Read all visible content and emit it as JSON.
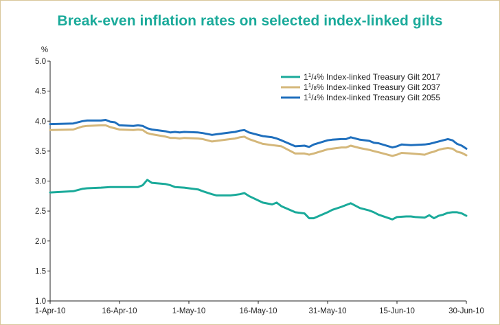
{
  "title": "Break-even inflation rates on selected index-linked gilts",
  "chart_data": {
    "type": "line",
    "title": "Break-even inflation rates on selected index-linked gilts",
    "ylabel": "%",
    "xlabel": "",
    "ylim": [
      1.0,
      5.0
    ],
    "yticks": [
      "5.0",
      "4.5",
      "4.0",
      "3.5",
      "3.0",
      "2.5",
      "2.0",
      "1.5",
      "1.0"
    ],
    "xlim": [
      "2010-04-01",
      "2010-06-30"
    ],
    "xticks": [
      "1-Apr-10",
      "16-Apr-10",
      "1-May-10",
      "16-May-10",
      "31-May-10",
      "15-Jun-10",
      "30-Jun-10"
    ],
    "grid": false,
    "legend_position": "top-right",
    "series": [
      {
        "name": "1¼% Index-linked Treasury Gilt 2017",
        "legend": {
          "pre": "1",
          "sup": "1",
          "mid": "/",
          "sub": "4",
          "post": "% Index-linked Treasury Gilt 2017"
        },
        "color": "#1aaa9a",
        "points": [
          [
            "2010-04-01",
            2.81
          ],
          [
            "2010-04-06",
            2.83
          ],
          [
            "2010-04-08",
            2.87
          ],
          [
            "2010-04-09",
            2.88
          ],
          [
            "2010-04-12",
            2.89
          ],
          [
            "2010-04-14",
            2.9
          ],
          [
            "2010-04-16",
            2.9
          ],
          [
            "2010-04-19",
            2.9
          ],
          [
            "2010-04-20",
            2.9
          ],
          [
            "2010-04-21",
            2.93
          ],
          [
            "2010-04-22",
            3.02
          ],
          [
            "2010-04-23",
            2.97
          ],
          [
            "2010-04-26",
            2.95
          ],
          [
            "2010-04-27",
            2.93
          ],
          [
            "2010-04-28",
            2.9
          ],
          [
            "2010-04-30",
            2.89
          ],
          [
            "2010-05-03",
            2.86
          ],
          [
            "2010-05-04",
            2.83
          ],
          [
            "2010-05-06",
            2.78
          ],
          [
            "2010-05-07",
            2.76
          ],
          [
            "2010-05-10",
            2.76
          ],
          [
            "2010-05-11",
            2.77
          ],
          [
            "2010-05-12",
            2.78
          ],
          [
            "2010-05-13",
            2.8
          ],
          [
            "2010-05-14",
            2.75
          ],
          [
            "2010-05-17",
            2.64
          ],
          [
            "2010-05-19",
            2.61
          ],
          [
            "2010-05-20",
            2.64
          ],
          [
            "2010-05-21",
            2.58
          ],
          [
            "2010-05-24",
            2.48
          ],
          [
            "2010-05-26",
            2.46
          ],
          [
            "2010-05-27",
            2.38
          ],
          [
            "2010-05-28",
            2.38
          ],
          [
            "2010-05-31",
            2.48
          ],
          [
            "2010-06-01",
            2.52
          ],
          [
            "2010-06-03",
            2.57
          ],
          [
            "2010-06-04",
            2.6
          ],
          [
            "2010-06-05",
            2.63
          ],
          [
            "2010-06-07",
            2.55
          ],
          [
            "2010-06-09",
            2.51
          ],
          [
            "2010-06-10",
            2.48
          ],
          [
            "2010-06-11",
            2.44
          ],
          [
            "2010-06-14",
            2.36
          ],
          [
            "2010-06-15",
            2.4
          ],
          [
            "2010-06-17",
            2.41
          ],
          [
            "2010-06-18",
            2.41
          ],
          [
            "2010-06-19",
            2.4
          ],
          [
            "2010-06-21",
            2.39
          ],
          [
            "2010-06-22",
            2.43
          ],
          [
            "2010-06-23",
            2.38
          ],
          [
            "2010-06-24",
            2.42
          ],
          [
            "2010-06-25",
            2.44
          ],
          [
            "2010-06-26",
            2.47
          ],
          [
            "2010-06-27",
            2.48
          ],
          [
            "2010-06-28",
            2.48
          ],
          [
            "2010-06-29",
            2.46
          ],
          [
            "2010-06-30",
            2.42
          ]
        ]
      },
      {
        "name": "1⅛% Index-linked Treasury Gilt 2037",
        "legend": {
          "pre": "1",
          "sup": "1",
          "mid": "/",
          "sub": "8",
          "post": "% Index-linked Treasury Gilt 2037"
        },
        "color": "#d4b77a",
        "points": [
          [
            "2010-04-01",
            3.85
          ],
          [
            "2010-04-06",
            3.86
          ],
          [
            "2010-04-08",
            3.91
          ],
          [
            "2010-04-09",
            3.92
          ],
          [
            "2010-04-12",
            3.93
          ],
          [
            "2010-04-13",
            3.93
          ],
          [
            "2010-04-14",
            3.9
          ],
          [
            "2010-04-16",
            3.86
          ],
          [
            "2010-04-19",
            3.85
          ],
          [
            "2010-04-20",
            3.86
          ],
          [
            "2010-04-21",
            3.85
          ],
          [
            "2010-04-22",
            3.8
          ],
          [
            "2010-04-23",
            3.78
          ],
          [
            "2010-04-26",
            3.74
          ],
          [
            "2010-04-27",
            3.72
          ],
          [
            "2010-04-28",
            3.72
          ],
          [
            "2010-04-29",
            3.71
          ],
          [
            "2010-04-30",
            3.72
          ],
          [
            "2010-05-03",
            3.71
          ],
          [
            "2010-05-04",
            3.7
          ],
          [
            "2010-05-06",
            3.66
          ],
          [
            "2010-05-07",
            3.67
          ],
          [
            "2010-05-10",
            3.7
          ],
          [
            "2010-05-11",
            3.71
          ],
          [
            "2010-05-12",
            3.73
          ],
          [
            "2010-05-13",
            3.74
          ],
          [
            "2010-05-14",
            3.7
          ],
          [
            "2010-05-17",
            3.62
          ],
          [
            "2010-05-19",
            3.6
          ],
          [
            "2010-05-20",
            3.59
          ],
          [
            "2010-05-21",
            3.58
          ],
          [
            "2010-05-24",
            3.46
          ],
          [
            "2010-05-26",
            3.46
          ],
          [
            "2010-05-27",
            3.44
          ],
          [
            "2010-05-28",
            3.46
          ],
          [
            "2010-05-31",
            3.53
          ],
          [
            "2010-06-01",
            3.54
          ],
          [
            "2010-06-03",
            3.56
          ],
          [
            "2010-06-04",
            3.56
          ],
          [
            "2010-06-05",
            3.59
          ],
          [
            "2010-06-07",
            3.55
          ],
          [
            "2010-06-09",
            3.52
          ],
          [
            "2010-06-10",
            3.5
          ],
          [
            "2010-06-11",
            3.48
          ],
          [
            "2010-06-14",
            3.42
          ],
          [
            "2010-06-15",
            3.44
          ],
          [
            "2010-06-16",
            3.47
          ],
          [
            "2010-06-18",
            3.46
          ],
          [
            "2010-06-21",
            3.44
          ],
          [
            "2010-06-22",
            3.47
          ],
          [
            "2010-06-23",
            3.49
          ],
          [
            "2010-06-24",
            3.52
          ],
          [
            "2010-06-25",
            3.54
          ],
          [
            "2010-06-26",
            3.55
          ],
          [
            "2010-06-27",
            3.54
          ],
          [
            "2010-06-28",
            3.49
          ],
          [
            "2010-06-29",
            3.47
          ],
          [
            "2010-06-30",
            3.43
          ]
        ]
      },
      {
        "name": "1¼% Index-linked Treasury Gilt 2055",
        "legend": {
          "pre": "1",
          "sup": "1",
          "mid": "/",
          "sub": "4",
          "post": "% Index-linked Treasury Gilt 2055"
        },
        "color": "#1f6fbd",
        "points": [
          [
            "2010-04-01",
            3.95
          ],
          [
            "2010-04-06",
            3.96
          ],
          [
            "2010-04-08",
            4.0
          ],
          [
            "2010-04-09",
            4.01
          ],
          [
            "2010-04-12",
            4.01
          ],
          [
            "2010-04-13",
            4.02
          ],
          [
            "2010-04-14",
            3.99
          ],
          [
            "2010-04-15",
            3.98
          ],
          [
            "2010-04-16",
            3.93
          ],
          [
            "2010-04-19",
            3.92
          ],
          [
            "2010-04-20",
            3.93
          ],
          [
            "2010-04-21",
            3.92
          ],
          [
            "2010-04-22",
            3.88
          ],
          [
            "2010-04-23",
            3.86
          ],
          [
            "2010-04-26",
            3.83
          ],
          [
            "2010-04-27",
            3.81
          ],
          [
            "2010-04-28",
            3.82
          ],
          [
            "2010-04-29",
            3.81
          ],
          [
            "2010-04-30",
            3.82
          ],
          [
            "2010-05-03",
            3.81
          ],
          [
            "2010-05-04",
            3.8
          ],
          [
            "2010-05-06",
            3.77
          ],
          [
            "2010-05-07",
            3.78
          ],
          [
            "2010-05-10",
            3.81
          ],
          [
            "2010-05-11",
            3.82
          ],
          [
            "2010-05-12",
            3.84
          ],
          [
            "2010-05-13",
            3.85
          ],
          [
            "2010-05-14",
            3.81
          ],
          [
            "2010-05-17",
            3.75
          ],
          [
            "2010-05-19",
            3.73
          ],
          [
            "2010-05-20",
            3.71
          ],
          [
            "2010-05-21",
            3.68
          ],
          [
            "2010-05-24",
            3.58
          ],
          [
            "2010-05-26",
            3.59
          ],
          [
            "2010-05-27",
            3.57
          ],
          [
            "2010-05-28",
            3.61
          ],
          [
            "2010-05-31",
            3.68
          ],
          [
            "2010-06-01",
            3.69
          ],
          [
            "2010-06-03",
            3.7
          ],
          [
            "2010-06-04",
            3.7
          ],
          [
            "2010-06-05",
            3.73
          ],
          [
            "2010-06-07",
            3.69
          ],
          [
            "2010-06-09",
            3.67
          ],
          [
            "2010-06-10",
            3.64
          ],
          [
            "2010-06-11",
            3.63
          ],
          [
            "2010-06-14",
            3.56
          ],
          [
            "2010-06-15",
            3.58
          ],
          [
            "2010-06-16",
            3.61
          ],
          [
            "2010-06-18",
            3.6
          ],
          [
            "2010-06-21",
            3.61
          ],
          [
            "2010-06-22",
            3.62
          ],
          [
            "2010-06-23",
            3.64
          ],
          [
            "2010-06-24",
            3.66
          ],
          [
            "2010-06-25",
            3.68
          ],
          [
            "2010-06-26",
            3.7
          ],
          [
            "2010-06-27",
            3.68
          ],
          [
            "2010-06-28",
            3.62
          ],
          [
            "2010-06-29",
            3.59
          ],
          [
            "2010-06-30",
            3.54
          ]
        ]
      }
    ]
  }
}
